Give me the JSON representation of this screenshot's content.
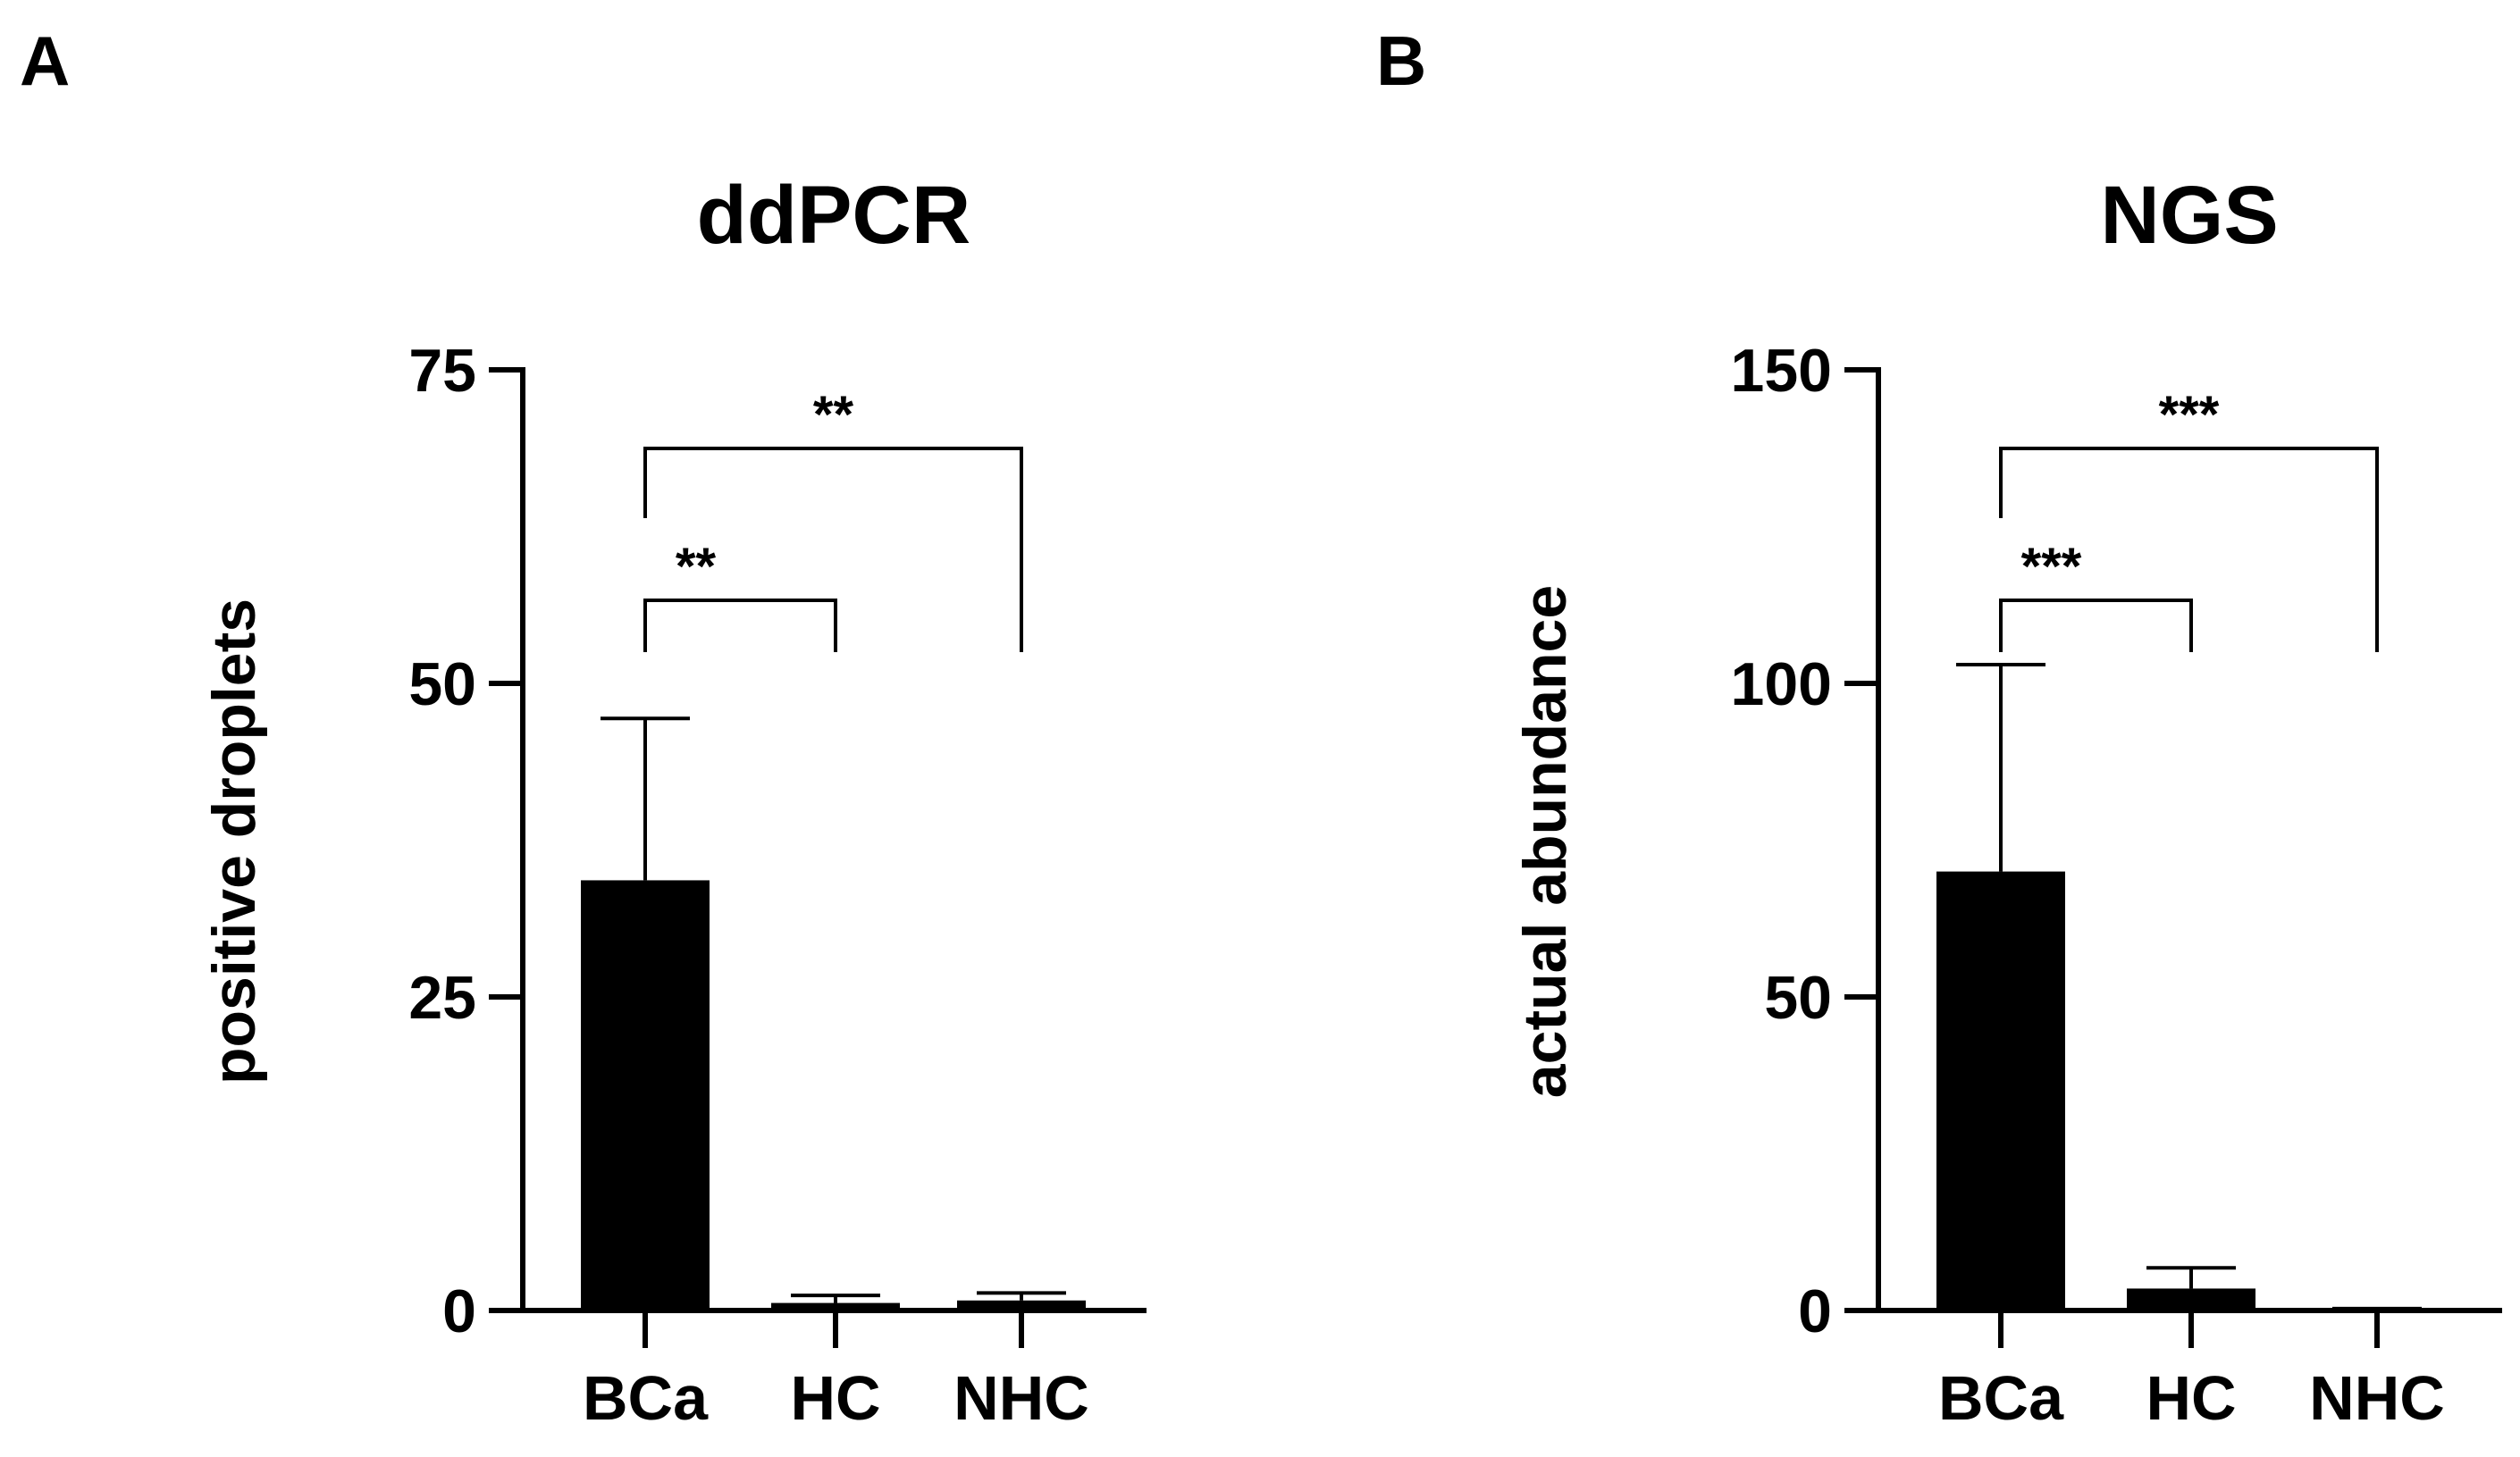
{
  "colors": {
    "bar": "#000000",
    "axis": "#000000",
    "background": "#ffffff"
  },
  "chart_data": [
    {
      "panel_label": "A",
      "type": "bar",
      "title": "ddPCR",
      "xlabel": "",
      "ylabel": "positive droplets",
      "ylim": [
        0,
        75
      ],
      "yticks": [
        0,
        25,
        50,
        75
      ],
      "ytick_labels": [
        "0",
        "25",
        "50",
        "75"
      ],
      "categories": [
        "BCa",
        "HC",
        "NHC"
      ],
      "values": [
        34.3,
        0.6,
        0.8
      ],
      "error_upper": [
        47.2,
        1.2,
        1.4
      ],
      "grid": false,
      "comparisons": [
        {
          "groups": [
            "BCa",
            "HC"
          ],
          "label": "**"
        },
        {
          "groups": [
            "BCa",
            "NHC"
          ],
          "label": "**"
        }
      ]
    },
    {
      "panel_label": "B",
      "type": "bar",
      "title": "NGS",
      "xlabel": "",
      "ylabel": "actual abundance",
      "ylim": [
        0,
        150
      ],
      "yticks": [
        0,
        50,
        100,
        150
      ],
      "ytick_labels": [
        "0",
        "50",
        "100",
        "150"
      ],
      "categories": [
        "BCa",
        "HC",
        "NHC"
      ],
      "values": [
        70,
        3.5,
        0.2
      ],
      "error_upper": [
        103,
        6.8,
        0.3
      ],
      "grid": false,
      "comparisons": [
        {
          "groups": [
            "BCa",
            "HC"
          ],
          "label": "***"
        },
        {
          "groups": [
            "BCa",
            "NHC"
          ],
          "label": "***"
        }
      ]
    }
  ]
}
